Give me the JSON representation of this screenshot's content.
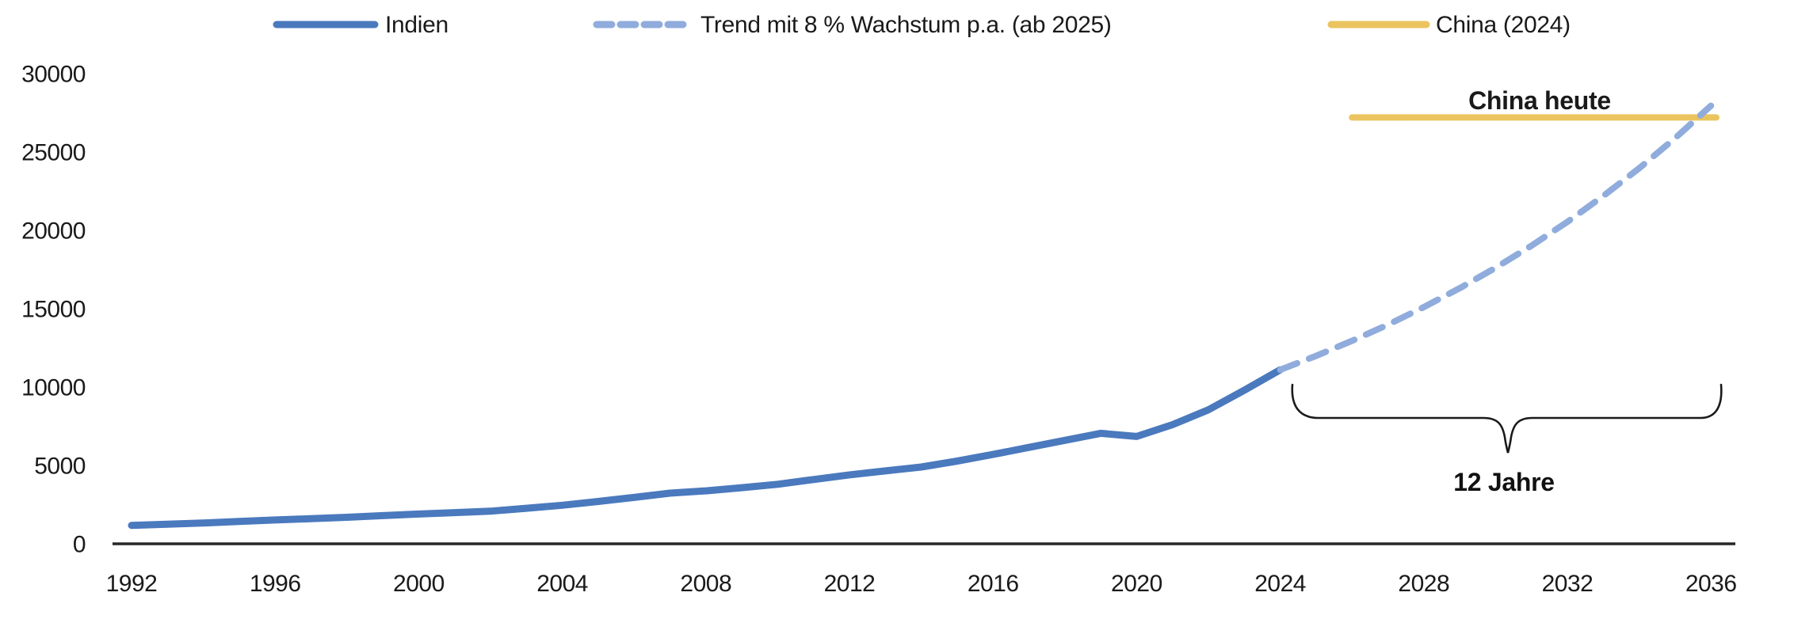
{
  "chart_data": {
    "type": "line",
    "x_axis": {
      "min": 1992,
      "max": 2036,
      "ticks": [
        1992,
        1996,
        2000,
        2004,
        2008,
        2012,
        2016,
        2020,
        2024,
        2028,
        2032,
        2036
      ]
    },
    "y_axis": {
      "min": 0,
      "max": 30000,
      "ticks": [
        0,
        5000,
        10000,
        15000,
        20000,
        25000,
        30000
      ]
    },
    "grid": "off",
    "legend_position": "top",
    "series": [
      {
        "name": "Indien",
        "style": "solid",
        "color": "#4A79BE",
        "x": [
          1992,
          1993,
          1994,
          1995,
          1996,
          1997,
          1998,
          1999,
          2000,
          2001,
          2002,
          2003,
          2004,
          2005,
          2006,
          2007,
          2008,
          2009,
          2010,
          2011,
          2012,
          2013,
          2014,
          2015,
          2016,
          2017,
          2018,
          2019,
          2020,
          2021,
          2022,
          2023,
          2024
        ],
        "values": [
          1175,
          1250,
          1330,
          1430,
          1520,
          1600,
          1690,
          1800,
          1900,
          1990,
          2080,
          2270,
          2460,
          2700,
          2960,
          3230,
          3380,
          3580,
          3800,
          4100,
          4400,
          4650,
          4900,
          5280,
          5700,
          6150,
          6600,
          7050,
          6850,
          7600,
          8550,
          9800,
          11100
        ]
      },
      {
        "name": "Trend mit 8 % Wachstum p.a. (ab 2025)",
        "style": "dashed",
        "color": "#8FACDC",
        "x": [
          2024,
          2025,
          2026,
          2027,
          2028,
          2029,
          2030,
          2031,
          2032,
          2033,
          2034,
          2035,
          2036
        ],
        "values": [
          11100,
          11990,
          12950,
          13980,
          15100,
          16310,
          17610,
          19020,
          20540,
          22190,
          23960,
          25880,
          27950
        ]
      },
      {
        "name": "China (2024)",
        "style": "solid",
        "color": "#ECC45F",
        "x": [
          2026,
          2036.15
        ],
        "values": [
          27200,
          27200
        ]
      }
    ],
    "annotations": {
      "china_label": "China heute",
      "years_label": "12 Jahre"
    }
  },
  "colors": {
    "india_line": "#4A79BE",
    "trend_line": "#8FACDC",
    "china_line": "#ECC45F",
    "china_text": "#DFA82E",
    "axis": "#262626",
    "text": "#1a1a1a"
  }
}
